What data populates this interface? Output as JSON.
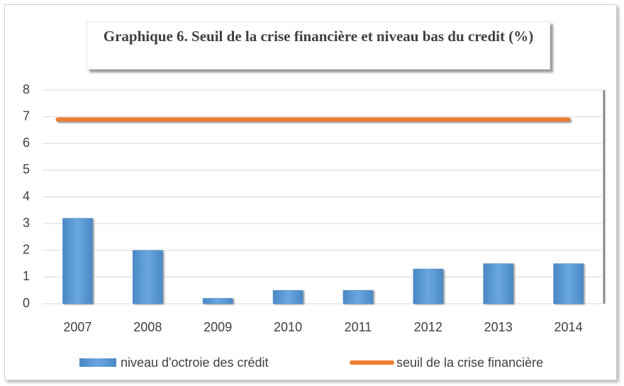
{
  "chart_data": {
    "type": "bar",
    "title": "Graphique 6. Seuil de la crise financière et niveau bas du credit (%)",
    "categories": [
      "2007",
      "2008",
      "2009",
      "2010",
      "2011",
      "2012",
      "2013",
      "2014"
    ],
    "series": [
      {
        "name": "niveau d'octroie des crédit",
        "color": "#5b9bd5",
        "type": "bar",
        "values": [
          3.2,
          2.0,
          0.2,
          0.5,
          0.5,
          1.3,
          1.5,
          1.5
        ]
      },
      {
        "name": "seuil de la crise financière",
        "color": "#ed7d31",
        "type": "line",
        "values": [
          6.9,
          6.9,
          6.9,
          6.9,
          6.9,
          6.9,
          6.9,
          6.9
        ]
      }
    ],
    "ylim": [
      0,
      8
    ],
    "yticks": [
      0,
      1,
      2,
      3,
      4,
      5,
      6,
      7,
      8
    ],
    "grid": true,
    "legend": "bottom"
  }
}
